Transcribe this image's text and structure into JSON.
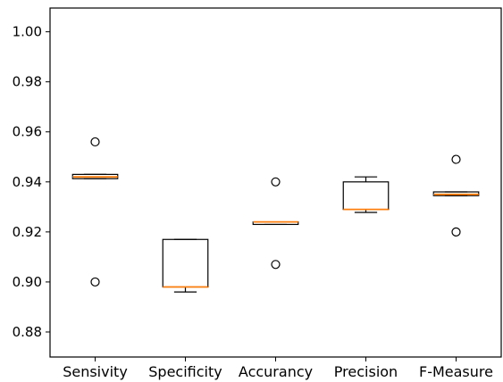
{
  "chart_data": {
    "type": "box",
    "categories": [
      "Sensivity",
      "Specificity",
      "Accurancy",
      "Precision",
      "F-Measure"
    ],
    "yticks": [
      "0.88",
      "0.90",
      "0.92",
      "0.94",
      "0.96",
      "0.98",
      "1.00"
    ],
    "ylim": [
      0.87,
      1.0095
    ],
    "grid": false,
    "boxes": [
      {
        "name": "Sensivity",
        "whisker_low": 0.9413,
        "q1": 0.9413,
        "median": 0.942,
        "q3": 0.943,
        "whisker_high": 0.943,
        "outliers": [
          0.956,
          0.9
        ]
      },
      {
        "name": "Specificity",
        "whisker_low": 0.896,
        "q1": 0.898,
        "median": 0.898,
        "q3": 0.917,
        "whisker_high": 0.917,
        "outliers": []
      },
      {
        "name": "Accurancy",
        "whisker_low": 0.923,
        "q1": 0.923,
        "median": 0.924,
        "q3": 0.924,
        "whisker_high": 0.924,
        "outliers": [
          0.94,
          0.907
        ]
      },
      {
        "name": "Precision",
        "whisker_low": 0.9278,
        "q1": 0.929,
        "median": 0.929,
        "q3": 0.94,
        "whisker_high": 0.942,
        "outliers": []
      },
      {
        "name": "F-Measure",
        "whisker_low": 0.9345,
        "q1": 0.9345,
        "median": 0.935,
        "q3": 0.936,
        "whisker_high": 0.936,
        "outliers": [
          0.949,
          0.92
        ]
      }
    ],
    "colors": {
      "box": "#000000",
      "median": "#ff7f0e",
      "outlier_edge": "#000000",
      "background": "#ffffff"
    }
  }
}
